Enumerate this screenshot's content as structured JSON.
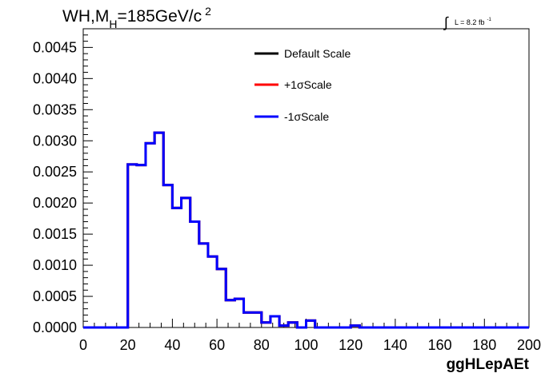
{
  "chart_data": {
    "type": "line",
    "title_main": "WH,M",
    "title_sub": "H",
    "title_rest": "=185GeV/c",
    "title_sup": "2",
    "lumi_text": "L = 8.2 fb",
    "lumi_sup": "-1",
    "xlabel": "ggHLepAEt",
    "ylabel": "",
    "xlim": [
      0,
      200
    ],
    "ylim": [
      0,
      0.0048
    ],
    "x_ticks": [
      0,
      20,
      40,
      60,
      80,
      100,
      120,
      140,
      160,
      180,
      200
    ],
    "x_tick_labels": [
      "0",
      "20",
      "40",
      "60",
      "80",
      "100",
      "120",
      "140",
      "160",
      "180",
      "200"
    ],
    "y_ticks": [
      0,
      0.0005,
      0.001,
      0.0015,
      0.002,
      0.0025,
      0.003,
      0.0035,
      0.004,
      0.0045
    ],
    "y_tick_labels": [
      "0.0000",
      "0.0005",
      "0.0010",
      "0.0015",
      "0.0020",
      "0.0025",
      "0.0030",
      "0.0035",
      "0.0040",
      "0.0045"
    ],
    "bin_edges": [
      0,
      4,
      8,
      12,
      16,
      20,
      24,
      28,
      32,
      36,
      40,
      44,
      48,
      52,
      56,
      60,
      64,
      68,
      72,
      76,
      80,
      84,
      88,
      92,
      96,
      100,
      104,
      108,
      112,
      116,
      120,
      124,
      128,
      132,
      136,
      140,
      144,
      148,
      152,
      156,
      160,
      164,
      168,
      172,
      176,
      180,
      184,
      188,
      192,
      196,
      200
    ],
    "legend_position": "top-center",
    "series": [
      {
        "name": "Default Scale",
        "color": "#000000",
        "values": [
          0,
          0,
          0,
          0,
          0,
          0.00262,
          0.00261,
          0.00296,
          0.00313,
          0.00229,
          0.00192,
          0.00208,
          0.0017,
          0.00135,
          0.00114,
          0.00094,
          0.00044,
          0.00046,
          0.00024,
          0.00024,
          8e-05,
          0.00018,
          3e-05,
          8e-05,
          0,
          0.00011,
          0,
          0,
          0,
          0,
          3e-05,
          0,
          0,
          0,
          0,
          0,
          0,
          0,
          0,
          0,
          0,
          0,
          0,
          0,
          0,
          0,
          0,
          0,
          0,
          0
        ]
      },
      {
        "name": "+1σScale",
        "color": "#ff0000",
        "values": [
          0,
          0,
          0,
          0,
          0,
          0.00262,
          0.00261,
          0.00296,
          0.00313,
          0.00229,
          0.00192,
          0.00208,
          0.0017,
          0.00135,
          0.00114,
          0.00094,
          0.00044,
          0.00046,
          0.00024,
          0.00024,
          8e-05,
          0.00018,
          3e-05,
          8e-05,
          0,
          0.00011,
          0,
          0,
          0,
          0,
          3e-05,
          0,
          0,
          0,
          0,
          0,
          0,
          0,
          0,
          0,
          0,
          0,
          0,
          0,
          0,
          0,
          0,
          0,
          0,
          0
        ]
      },
      {
        "name": "-1σScale",
        "color": "#0000ff",
        "values": [
          0,
          0,
          0,
          0,
          0,
          0.00262,
          0.00261,
          0.00296,
          0.00313,
          0.00229,
          0.00192,
          0.00208,
          0.0017,
          0.00135,
          0.00114,
          0.00094,
          0.00044,
          0.00046,
          0.00024,
          0.00024,
          8e-05,
          0.00018,
          3e-05,
          8e-05,
          0,
          0.00011,
          0,
          0,
          0,
          0,
          3e-05,
          0,
          0,
          0,
          0,
          0,
          0,
          0,
          0,
          0,
          0,
          0,
          0,
          0,
          0,
          0,
          0,
          0,
          0,
          0
        ]
      }
    ]
  }
}
